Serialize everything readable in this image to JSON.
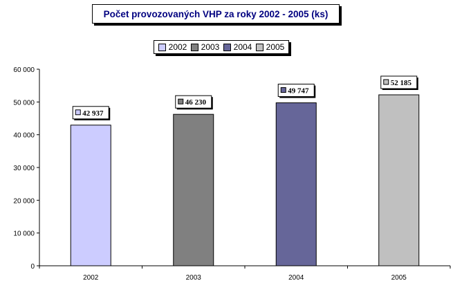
{
  "chart_data": {
    "type": "bar",
    "title": "Počet provozovaných VHP za roky 2002 - 2005 (ks)",
    "categories": [
      "2002",
      "2003",
      "2004",
      "2005"
    ],
    "values": [
      42937,
      46230,
      49747,
      52185
    ],
    "data_labels": [
      "42 937",
      "46 230",
      "49 747",
      "52 185"
    ],
    "series_colors": [
      "#ccccff",
      "#808080",
      "#666699",
      "#c0c0c0"
    ],
    "legend": [
      "2002",
      "2003",
      "2004",
      "2005"
    ],
    "legend_position": "top",
    "ylim": [
      0,
      60000
    ],
    "yticks": [
      0,
      10000,
      20000,
      30000,
      40000,
      50000,
      60000
    ],
    "ytick_labels": [
      "0",
      "10 000",
      "20 000",
      "30 000",
      "40 000",
      "50 000",
      "60 000"
    ],
    "grid": false
  }
}
